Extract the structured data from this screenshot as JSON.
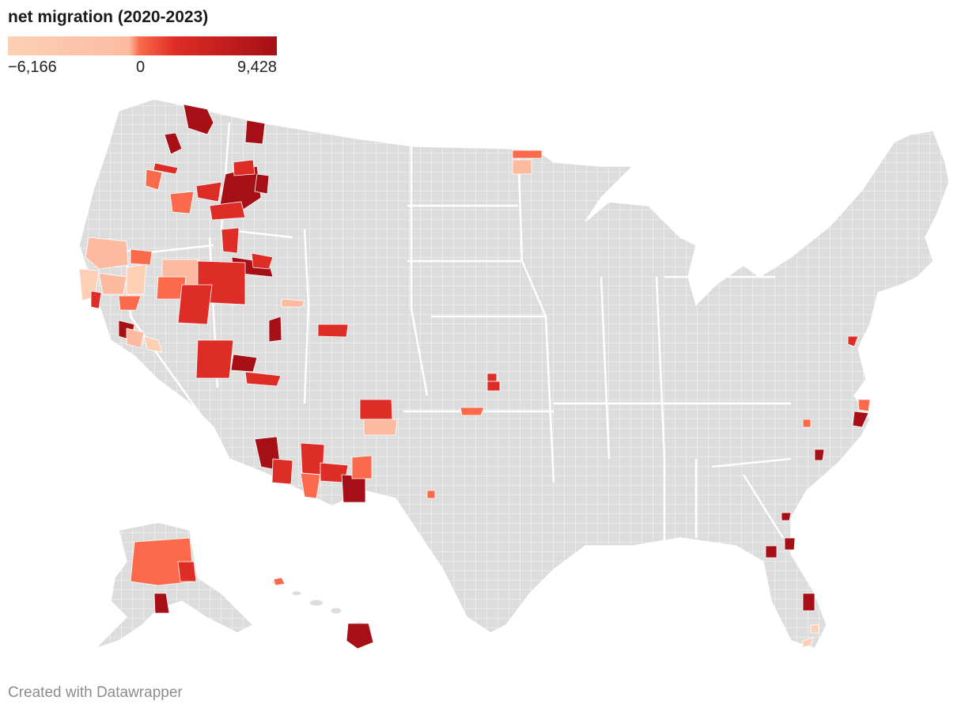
{
  "title": "net migration (2020-2023)",
  "legend": {
    "min_label": "−6,166",
    "mid_label": "0",
    "max_label": "9,428",
    "colors": [
      "#fdd0b5",
      "#fcbba1",
      "#fb6a4a",
      "#de2d26",
      "#a50f15"
    ]
  },
  "colors": {
    "no_data": "#dcdcdc",
    "border": "#ffffff"
  },
  "credit": "Created with Datawrapper"
}
